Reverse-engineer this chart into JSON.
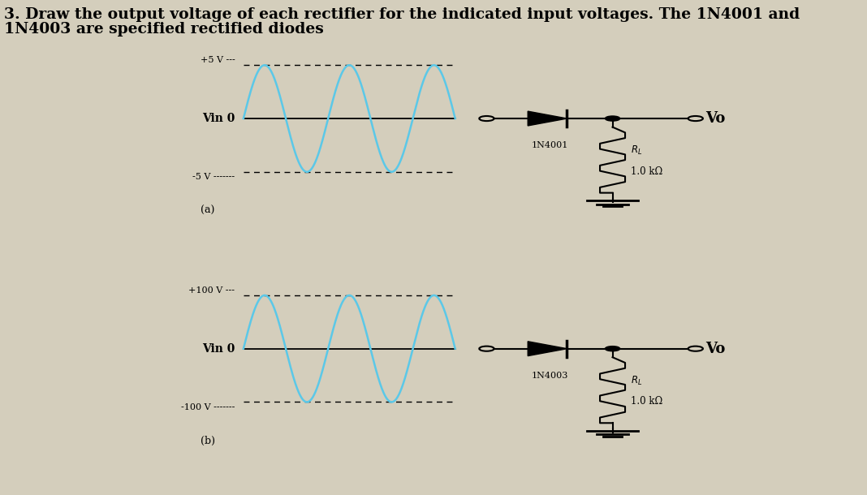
{
  "bg_color": "#d4cebc",
  "panel_color": "#ffffff",
  "title_line1": "3. Draw the output voltage of each rectifier for the indicated input voltages. The 1N4001 and",
  "title_line2": "1N4003 are specified rectified diodes",
  "title_fontsize": 13.5,
  "panel_a": {
    "label": "(a)",
    "vin_label": "Vin 0",
    "pos_label": "+5 V ---",
    "neg_label": "-5 V -------",
    "diode_label": "1N4001",
    "rl_label": "R_L",
    "rl_value": "1.0 kΩ",
    "vo_label": "Vo",
    "sine_color": "#5bc8e8",
    "line_color": "#000000"
  },
  "panel_b": {
    "label": "(b)",
    "vin_label": "Vin 0",
    "pos_label": "+100 V ---",
    "neg_label": "-100 V -------",
    "diode_label": "1N4003",
    "rl_label": "R_L",
    "rl_value": "1.0 kΩ",
    "vo_label": "Vo",
    "sine_color": "#5bc8e8",
    "line_color": "#000000"
  }
}
